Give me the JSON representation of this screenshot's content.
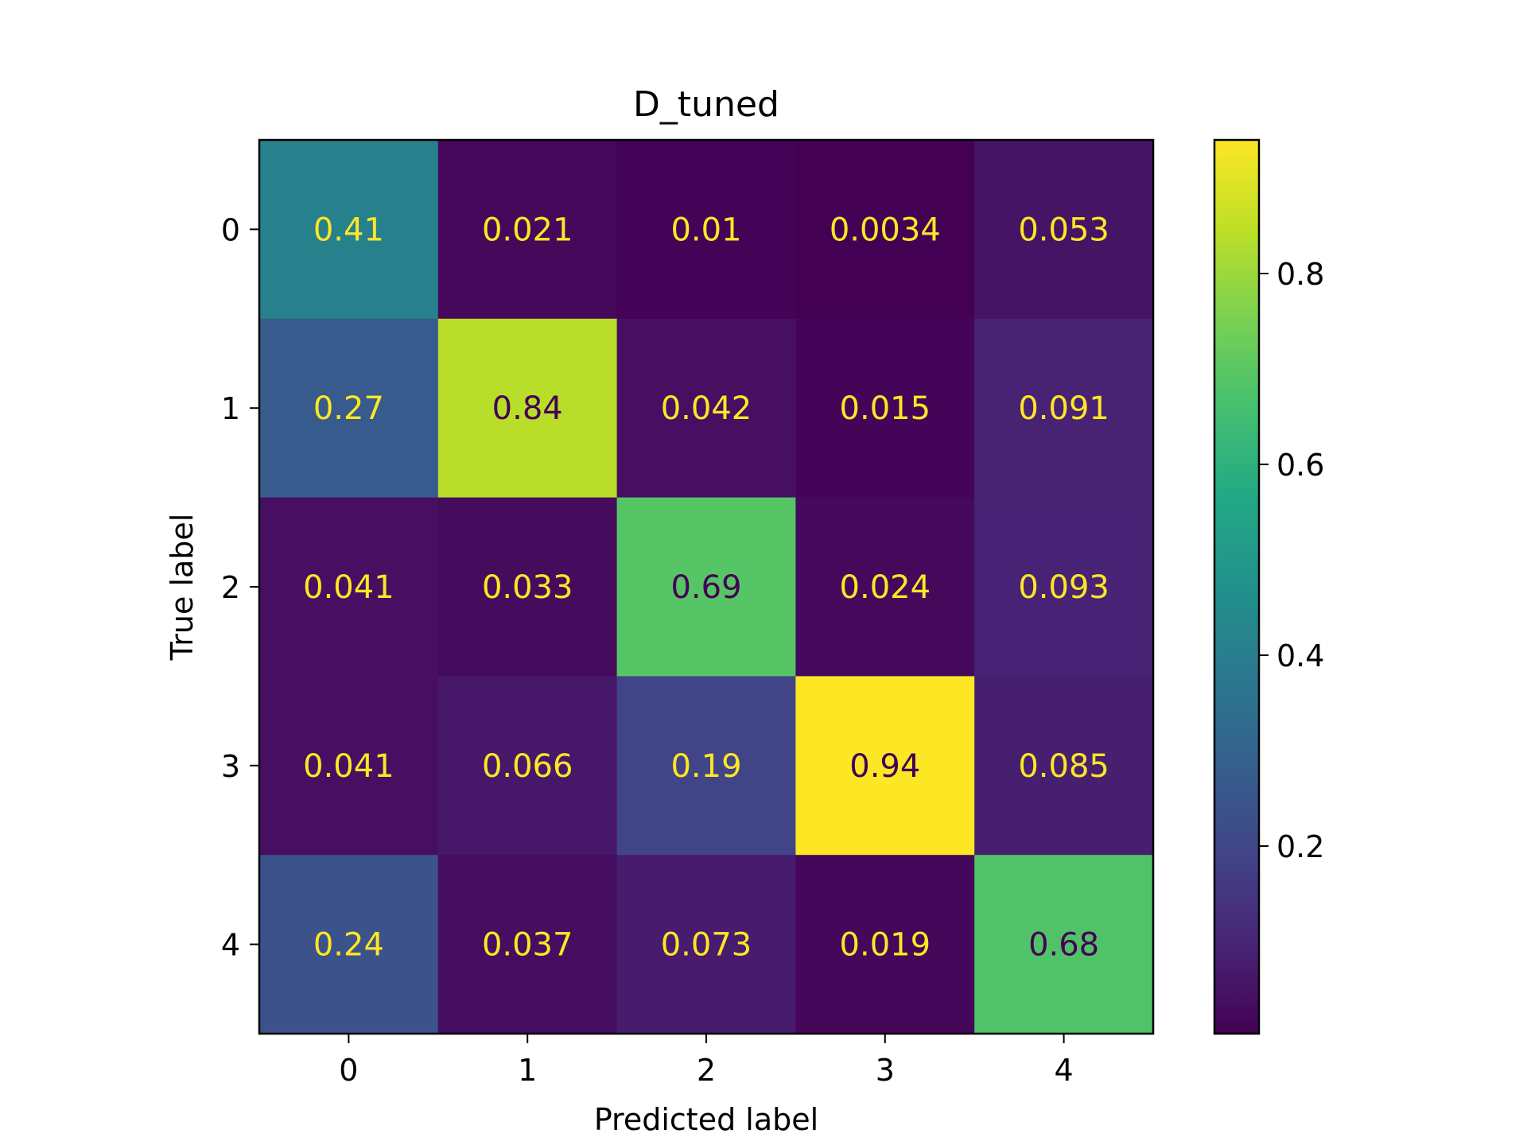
{
  "chart_data": {
    "type": "heatmap",
    "title": "D_tuned",
    "xlabel": "Predicted label",
    "ylabel": "True label",
    "x_categories": [
      "0",
      "1",
      "2",
      "3",
      "4"
    ],
    "y_categories": [
      "0",
      "1",
      "2",
      "3",
      "4"
    ],
    "values": [
      [
        0.41,
        0.021,
        0.01,
        0.0034,
        0.053
      ],
      [
        0.27,
        0.84,
        0.042,
        0.015,
        0.091
      ],
      [
        0.041,
        0.033,
        0.69,
        0.024,
        0.093
      ],
      [
        0.041,
        0.066,
        0.19,
        0.94,
        0.085
      ],
      [
        0.24,
        0.037,
        0.073,
        0.019,
        0.68
      ]
    ],
    "value_labels": [
      [
        "0.41",
        "0.021",
        "0.01",
        "0.0034",
        "0.053"
      ],
      [
        "0.27",
        "0.84",
        "0.042",
        "0.015",
        "0.091"
      ],
      [
        "0.041",
        "0.033",
        "0.69",
        "0.024",
        "0.093"
      ],
      [
        "0.041",
        "0.066",
        "0.19",
        "0.94",
        "0.085"
      ],
      [
        "0.24",
        "0.037",
        "0.073",
        "0.019",
        "0.68"
      ]
    ],
    "colormap": "viridis",
    "colorbar": {
      "range": [
        0.0034,
        0.94
      ],
      "ticks": [
        0.2,
        0.4,
        0.6,
        0.8
      ],
      "tick_labels": [
        "0.2",
        "0.4",
        "0.6",
        "0.8"
      ]
    },
    "text_colors": {
      "light": "#fde725",
      "dark": "#440154"
    },
    "grid": false
  }
}
